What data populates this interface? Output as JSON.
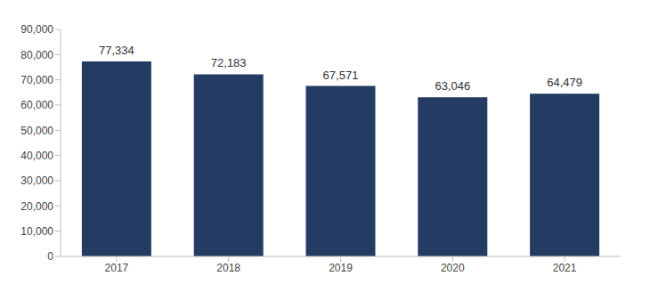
{
  "chart_data": {
    "type": "bar",
    "categories": [
      "2017",
      "2018",
      "2019",
      "2020",
      "2021"
    ],
    "values": [
      77334,
      72183,
      67571,
      63046,
      64479
    ],
    "value_labels": [
      "77,334",
      "72,183",
      "67,571",
      "63,046",
      "64,479"
    ],
    "color": "#243c64",
    "ylim": [
      0,
      90000
    ],
    "yticks": [
      0,
      {
        "value": 10000,
        "label": "10,000"
      },
      {
        "value": 20000,
        "label": "20,000"
      },
      {
        "value": 30000,
        "label": "30,000"
      },
      {
        "value": 40000,
        "label": "40,000"
      },
      {
        "value": 50000,
        "label": "50,000"
      },
      {
        "value": 60000,
        "label": "60,000"
      },
      {
        "value": 70000,
        "label": "70,000"
      },
      {
        "value": 80000,
        "label": "80,000"
      },
      {
        "value": 90000,
        "label": "90,000"
      }
    ],
    "grid": false,
    "data_labels": true
  }
}
